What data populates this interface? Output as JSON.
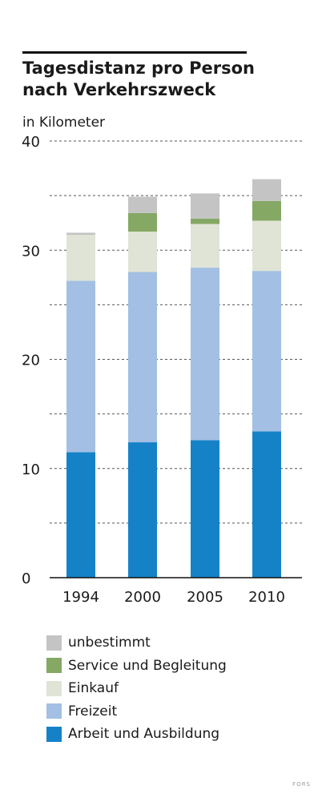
{
  "source_logo": "FORS",
  "chart_data": {
    "type": "bar",
    "stacked": true,
    "title": "Tagesdistanz pro Person nach Verkehrszweck",
    "unit_label": "in Kilometer",
    "categories": [
      "1994",
      "2000",
      "2005",
      "2010"
    ],
    "ylim": [
      0,
      40
    ],
    "yticks": [
      0,
      10,
      20,
      30,
      40
    ],
    "grid": "dashed",
    "legend_position": "bottom",
    "series": [
      {
        "name": "Arbeit und Ausbildung",
        "color": "#1582c8",
        "values": [
          11.5,
          12.4,
          12.6,
          13.4
        ]
      },
      {
        "name": "Freizeit",
        "color": "#a3bfe3",
        "values": [
          15.7,
          15.6,
          15.8,
          14.7
        ]
      },
      {
        "name": "Einkauf",
        "color": "#e0e4d6",
        "values": [
          4.2,
          3.7,
          4.0,
          4.6
        ]
      },
      {
        "name": "Service und Begleitung",
        "color": "#85a865",
        "values": [
          0.0,
          1.7,
          0.5,
          1.8
        ]
      },
      {
        "name": "unbestimmt",
        "color": "#c4c4c4",
        "values": [
          0.2,
          1.5,
          2.3,
          2.0
        ]
      }
    ]
  }
}
